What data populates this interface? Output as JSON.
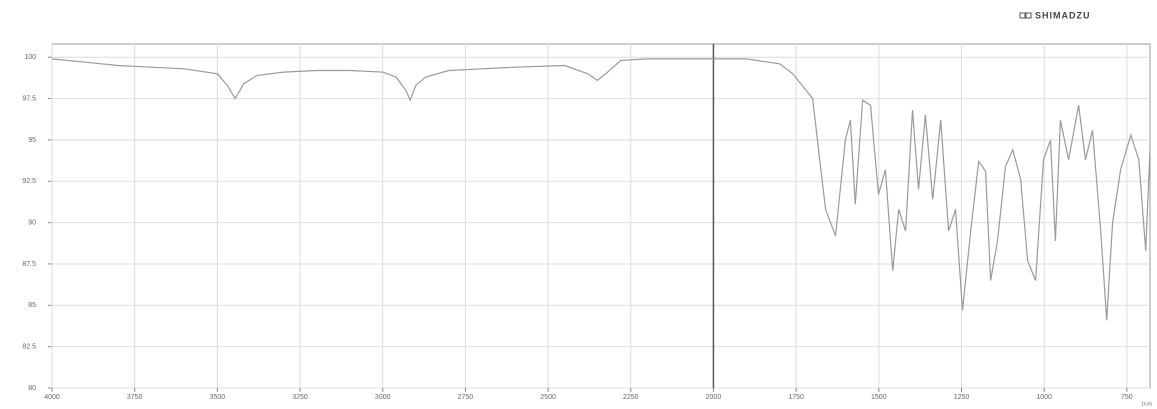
{
  "chart_data": {
    "type": "line",
    "title": "SHIMADZU",
    "x_unit": "1/cm",
    "x": [
      4000,
      3900,
      3800,
      3700,
      3600,
      3500,
      3470,
      3446,
      3420,
      3380,
      3300,
      3200,
      3100,
      3000,
      2960,
      2930,
      2917,
      2900,
      2870,
      2800,
      2700,
      2600,
      2450,
      2380,
      2351,
      2320,
      2280,
      2200,
      2100,
      2000,
      1900,
      1800,
      1760,
      1700,
      1680,
      1661,
      1631,
      1601,
      1586,
      1571,
      1549,
      1525,
      1501,
      1480,
      1458,
      1440,
      1419,
      1398,
      1380,
      1359,
      1337,
      1313,
      1289,
      1268,
      1247,
      1222,
      1198,
      1177,
      1162,
      1141,
      1117,
      1095,
      1071,
      1050,
      1026,
      1002,
      981,
      966,
      951,
      926,
      896,
      875,
      854,
      829,
      811,
      793,
      769,
      738,
      714,
      693,
      680
    ],
    "y": [
      99.9,
      99.7,
      99.5,
      99.4,
      99.3,
      99.0,
      98.3,
      97.5,
      98.4,
      98.9,
      99.1,
      99.2,
      99.2,
      99.1,
      98.8,
      98.0,
      97.4,
      98.3,
      98.8,
      99.2,
      99.3,
      99.4,
      99.5,
      99.0,
      98.6,
      99.1,
      99.8,
      99.9,
      99.9,
      99.9,
      99.9,
      99.6,
      99.0,
      97.5,
      94.0,
      90.8,
      89.2,
      95.0,
      96.2,
      91.1,
      97.4,
      97.1,
      91.7,
      93.2,
      87.1,
      90.8,
      89.5,
      96.8,
      92.0,
      96.5,
      91.4,
      96.2,
      89.5,
      90.8,
      84.7,
      89.5,
      93.7,
      93.1,
      86.5,
      88.9,
      93.4,
      94.4,
      92.6,
      87.7,
      86.5,
      93.8,
      95.0,
      88.9,
      96.2,
      93.8,
      97.1,
      93.8,
      95.6,
      89.5,
      84.1,
      90.0,
      93.2,
      95.3,
      93.8,
      88.3,
      94.4
    ],
    "color": "#9a9a9a",
    "xlim": [
      4000,
      680
    ],
    "xticks": [
      4000,
      3750,
      3500,
      3250,
      3000,
      2750,
      2500,
      2250,
      2000,
      1750,
      1500,
      1250,
      1000,
      750
    ],
    "ylim": [
      80,
      100.8
    ],
    "yticks": [
      80,
      82.5,
      85,
      87.5,
      90,
      92.5,
      95,
      97.5,
      100
    ],
    "grid": true
  }
}
